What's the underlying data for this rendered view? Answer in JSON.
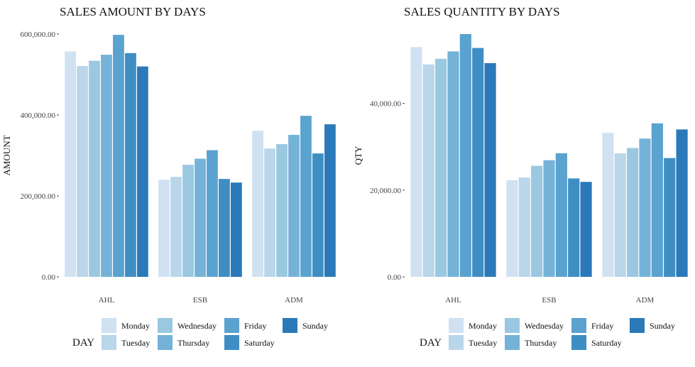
{
  "chart_data": [
    {
      "type": "bar",
      "title": "SALES AMOUNT BY DAYS",
      "xlabel": "",
      "ylabel": "AMOUNT",
      "categories": [
        "AHL",
        "ESB",
        "ADM"
      ],
      "ylim": [
        0,
        600000
      ],
      "yticks": [
        0,
        200000,
        400000,
        600000
      ],
      "ytick_labels": [
        "0.00",
        "200,000.00",
        "400,000.00",
        "600,000.00"
      ],
      "grid": false,
      "series": [
        {
          "name": "Monday",
          "color": "#d0e1f2",
          "values": [
            557000,
            240000,
            361000
          ]
        },
        {
          "name": "Tuesday",
          "color": "#b9d6ea",
          "values": [
            521000,
            247000,
            317000
          ]
        },
        {
          "name": "Wednesday",
          "color": "#9ac8e0",
          "values": [
            534000,
            277000,
            328000
          ]
        },
        {
          "name": "Thursday",
          "color": "#75b2d8",
          "values": [
            549000,
            292000,
            351000
          ]
        },
        {
          "name": "Friday",
          "color": "#5aa2cf",
          "values": [
            598000,
            313000,
            398000
          ]
        },
        {
          "name": "Saturday",
          "color": "#3e8ec4",
          "values": [
            553000,
            242000,
            305000
          ]
        },
        {
          "name": "Sunday",
          "color": "#2b79b9",
          "values": [
            520000,
            233000,
            377000
          ]
        }
      ],
      "legend": {
        "title": "DAY",
        "position": "bottom"
      }
    },
    {
      "type": "bar",
      "title": "SALES QUANTITY BY DAYS",
      "xlabel": "",
      "ylabel": "QTY",
      "categories": [
        "AHL",
        "ESB",
        "ADM"
      ],
      "ylim": [
        0,
        56000
      ],
      "yticks": [
        0,
        20000,
        40000
      ],
      "ytick_labels": [
        "0.00",
        "20,000.00",
        "40,000.00"
      ],
      "grid": false,
      "series": [
        {
          "name": "Monday",
          "color": "#d0e1f2",
          "values": [
            53000,
            22300,
            33200
          ]
        },
        {
          "name": "Tuesday",
          "color": "#b9d6ea",
          "values": [
            49000,
            22900,
            28500
          ]
        },
        {
          "name": "Wednesday",
          "color": "#9ac8e0",
          "values": [
            50300,
            25600,
            29700
          ]
        },
        {
          "name": "Thursday",
          "color": "#75b2d8",
          "values": [
            52000,
            26900,
            31900
          ]
        },
        {
          "name": "Friday",
          "color": "#5aa2cf",
          "values": [
            56000,
            28500,
            35400
          ]
        },
        {
          "name": "Saturday",
          "color": "#3e8ec4",
          "values": [
            52800,
            22700,
            27400
          ]
        },
        {
          "name": "Sunday",
          "color": "#2b79b9",
          "values": [
            49300,
            21900,
            34000
          ]
        }
      ],
      "legend": {
        "title": "DAY",
        "position": "bottom"
      }
    }
  ]
}
